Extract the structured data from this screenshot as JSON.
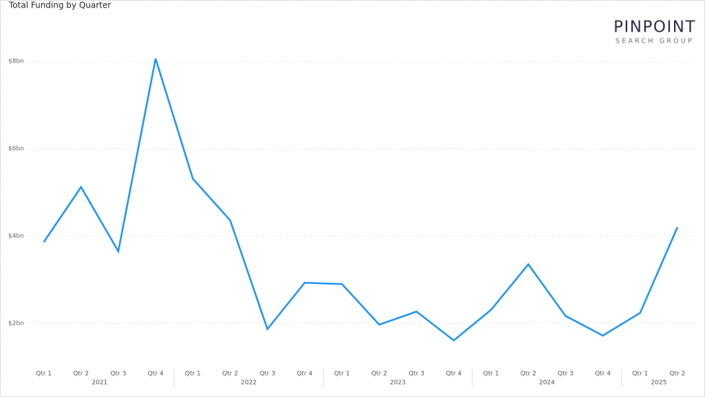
{
  "chart_data": {
    "type": "line",
    "title": "Total Funding by Quarter",
    "groups": [
      {
        "name": "2021",
        "categories": [
          "Qtr 1",
          "Qtr 2",
          "Qtr 3",
          "Qtr 4"
        ]
      },
      {
        "name": "2022",
        "categories": [
          "Qtr 1",
          "Qtr 2",
          "Qtr 3",
          "Qtr 4"
        ]
      },
      {
        "name": "2023",
        "categories": [
          "Qtr 1",
          "Qtr 2",
          "Qtr 3",
          "Qtr 4"
        ]
      },
      {
        "name": "2024",
        "categories": [
          "Qtr 1",
          "Qtr 2",
          "Qtr 3",
          "Qtr 4"
        ]
      },
      {
        "name": "2025",
        "categories": [
          "Qtr 1",
          "Qtr 2"
        ]
      }
    ],
    "series": [
      {
        "color": "#2196f3",
        "values": [
          3.86,
          5.12,
          3.65,
          8.06,
          5.31,
          4.36,
          1.87,
          2.93,
          2.9,
          1.97,
          2.27,
          1.61,
          2.31,
          3.35,
          2.17,
          1.72,
          2.24,
          4.2
        ]
      }
    ],
    "ylim": [
      1,
      9
    ],
    "yticks": [
      {
        "value": 2,
        "label": "$2bn"
      },
      {
        "value": 4,
        "label": "$4bn"
      },
      {
        "value": 6,
        "label": "$6bn"
      },
      {
        "value": 8,
        "label": "$8bn"
      }
    ],
    "grid": true
  },
  "logo": {
    "name": "PINPOINT",
    "tagline": "SEARCH GROUP"
  }
}
